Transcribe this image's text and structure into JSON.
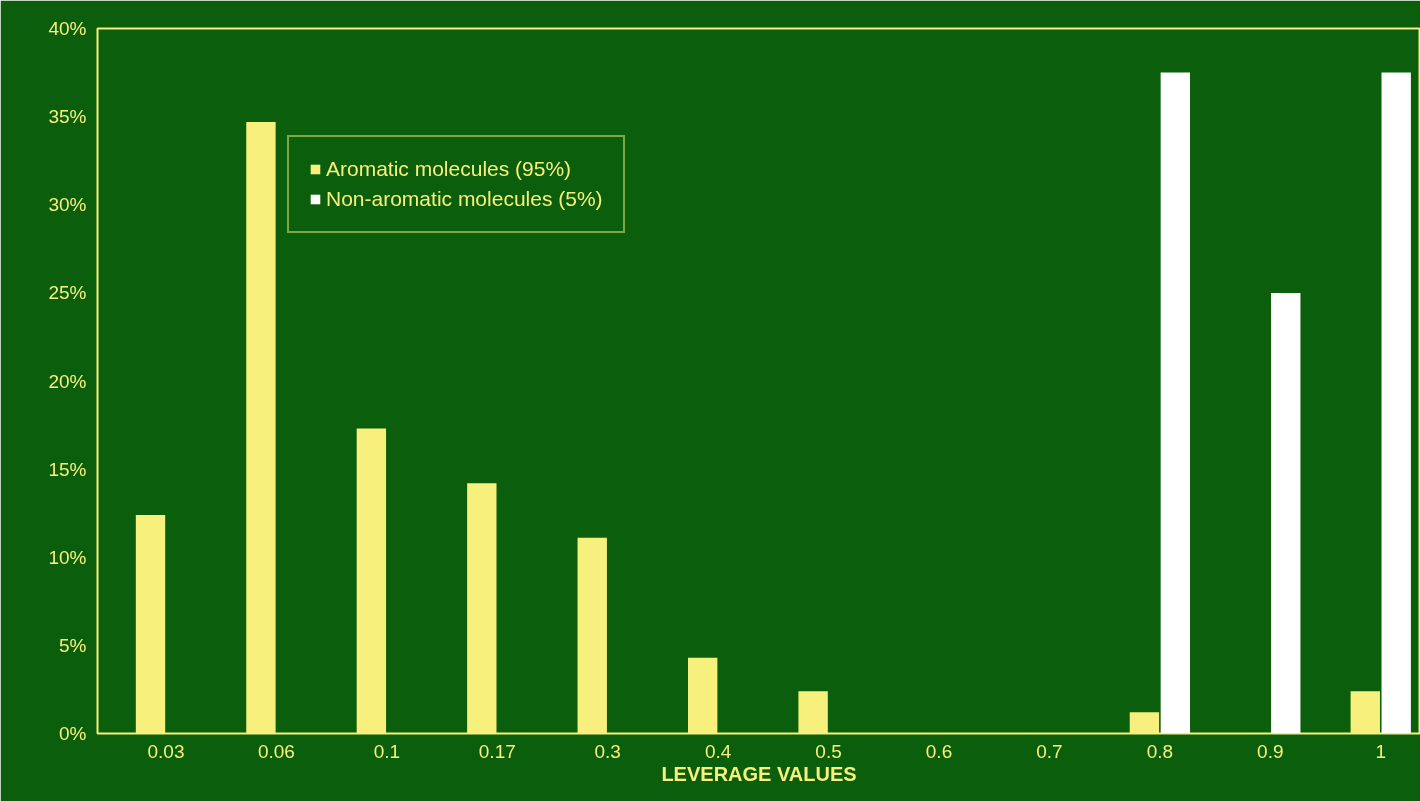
{
  "chart_data": {
    "type": "bar",
    "xlabel": "LEVERAGE VALUES",
    "categories": [
      "0.03",
      "0.06",
      "0.1",
      "0.17",
      "0.3",
      "0.4",
      "0.5",
      "0.6",
      "0.7",
      "0.8",
      "0.9",
      "1"
    ],
    "series": [
      {
        "name": "Aromatic molecules (95%)",
        "color": "#f8f07c",
        "values": [
          12.4,
          34.7,
          17.3,
          14.2,
          11.1,
          4.3,
          2.4,
          0,
          0,
          1.2,
          0,
          2.4
        ]
      },
      {
        "name": "Non-aromatic molecules (5%)",
        "color": "#ffffff",
        "values": [
          0,
          0,
          0,
          0,
          0,
          0,
          0,
          0,
          0,
          37.5,
          25,
          37.5
        ]
      }
    ],
    "ylim": [
      0,
      40
    ],
    "yticks": [
      {
        "value": 0,
        "label": "0%"
      },
      {
        "value": 5,
        "label": "5%"
      },
      {
        "value": 10,
        "label": "10%"
      },
      {
        "value": 15,
        "label": "15%"
      },
      {
        "value": 20,
        "label": "20%"
      },
      {
        "value": 25,
        "label": "25%"
      },
      {
        "value": 30,
        "label": "30%"
      },
      {
        "value": 35,
        "label": "35%"
      },
      {
        "value": 40,
        "label": "40%"
      }
    ],
    "grid": false,
    "legend": "top left"
  }
}
